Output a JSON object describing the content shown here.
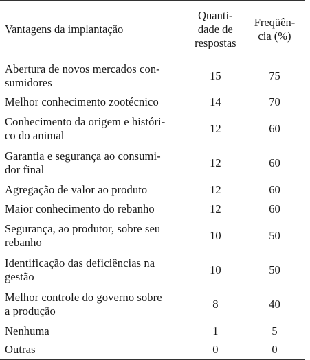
{
  "table": {
    "headers": {
      "advantages": "Vantagens da implantação",
      "quantity": "Quanti-\ndade de\nrespostas",
      "frequency": "Freqüên-\ncia (%)"
    },
    "rows": [
      {
        "advantage": "Abertura de novos mercados con-\nsumidores",
        "quantity": "15",
        "frequency": "75"
      },
      {
        "advantage": "Melhor conhecimento zootécnico",
        "quantity": "14",
        "frequency": "70"
      },
      {
        "advantage": "Conhecimento da origem e históri-\nco do animal",
        "quantity": "12",
        "frequency": "60"
      },
      {
        "advantage": "Garantia e segurança ao consumi-\ndor final",
        "quantity": "12",
        "frequency": "60"
      },
      {
        "advantage": "Agregação de valor ao produto",
        "quantity": "12",
        "frequency": "60"
      },
      {
        "advantage": "Maior conhecimento do rebanho",
        "quantity": "12",
        "frequency": "60"
      },
      {
        "advantage": "Segurança, ao produtor, sobre seu\nrebanho",
        "quantity": "10",
        "frequency": "50"
      },
      {
        "advantage": "Identificação das deficiências na\ngestão",
        "quantity": "10",
        "frequency": "50"
      },
      {
        "advantage": "Melhor controle do governo sobre\na produção",
        "quantity": "8",
        "frequency": "40"
      },
      {
        "advantage": "Nenhuma",
        "quantity": "1",
        "frequency": "5"
      },
      {
        "advantage": "Outras",
        "quantity": "0",
        "frequency": "0"
      }
    ]
  }
}
